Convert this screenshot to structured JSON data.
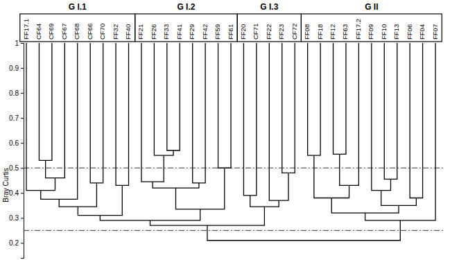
{
  "chart_data": {
    "type": "dendrogram",
    "y_label": "Bray Curtis",
    "ylim": [
      0.14,
      1
    ],
    "yticks": [
      0.2,
      0.3,
      0.4,
      0.5,
      0.6,
      0.7,
      0.8,
      0.9,
      1
    ],
    "reference_lines": [
      0.5,
      0.25
    ],
    "color": "#000000",
    "groups": [
      {
        "label": "G I.1",
        "first": "FF17.1",
        "last": "FF40"
      },
      {
        "label": "G I.2",
        "first": "FF21",
        "last": "FF61"
      },
      {
        "label": "G I.3",
        "first": "FF20",
        "last": "CF72"
      },
      {
        "label": "G II",
        "first": "FF08",
        "last": "FF07"
      }
    ],
    "tree": {
      "height": 0.21,
      "children": [
        {
          "height": 0.27,
          "children": [
            {
              "height": 0.29,
              "children": [
                {
                  "height": 0.31,
                  "children": [
                    {
                      "height": 0.345,
                      "children": [
                        {
                          "height": 0.375,
                          "children": [
                            {
                              "height": 0.41,
                              "children": [
                                {
                                  "label": "FF17.1"
                                },
                                {
                                  "height": 0.46,
                                  "children": [
                                    {
                                      "height": 0.53,
                                      "children": [
                                        {
                                          "label": "CF64"
                                        },
                                        {
                                          "label": "CF69"
                                        }
                                      ]
                                    },
                                    {
                                      "label": "CF67"
                                    }
                                  ]
                                }
                              ]
                            },
                            {
                              "label": "CF68"
                            }
                          ]
                        },
                        {
                          "height": 0.44,
                          "children": [
                            {
                              "label": "CF66"
                            },
                            {
                              "label": "CF70"
                            }
                          ]
                        }
                      ]
                    },
                    {
                      "height": 0.43,
                      "children": [
                        {
                          "label": "FF32"
                        },
                        {
                          "label": "FF40"
                        }
                      ]
                    }
                  ]
                },
                {
                  "height": 0.335,
                  "children": [
                    {
                      "height": 0.42,
                      "children": [
                        {
                          "height": 0.445,
                          "children": [
                            {
                              "label": "FF21"
                            },
                            {
                              "height": 0.55,
                              "children": [
                                {
                                  "label": "FF26"
                                },
                                {
                                  "height": 0.57,
                                  "children": [
                                    {
                                      "label": "FF33"
                                    },
                                    {
                                      "label": "FF41"
                                    }
                                  ]
                                }
                              ]
                            }
                          ]
                        },
                        {
                          "height": 0.44,
                          "children": [
                            {
                              "label": "FF29"
                            },
                            {
                              "label": "FF42"
                            }
                          ]
                        }
                      ]
                    },
                    {
                      "height": 0.5,
                      "children": [
                        {
                          "label": "FF59"
                        },
                        {
                          "label": "FF61"
                        }
                      ]
                    }
                  ]
                }
              ]
            },
            {
              "height": 0.345,
              "children": [
                {
                  "height": 0.39,
                  "children": [
                    {
                      "label": "FF20"
                    },
                    {
                      "label": "CF71"
                    }
                  ]
                },
                {
                  "height": 0.37,
                  "children": [
                    {
                      "label": "FF22"
                    },
                    {
                      "height": 0.48,
                      "children": [
                        {
                          "label": "FF23"
                        },
                        {
                          "label": "CF72"
                        }
                      ]
                    }
                  ]
                }
              ]
            }
          ]
        },
        {
          "height": 0.29,
          "children": [
            {
              "height": 0.32,
              "children": [
                {
                  "height": 0.38,
                  "children": [
                    {
                      "height": 0.55,
                      "children": [
                        {
                          "label": "FF08"
                        },
                        {
                          "label": "FF18"
                        }
                      ]
                    },
                    {
                      "height": 0.43,
                      "children": [
                        {
                          "height": 0.555,
                          "children": [
                            {
                              "label": "FF12"
                            },
                            {
                              "label": "FF63"
                            }
                          ]
                        },
                        {
                          "label": "FF17.2"
                        }
                      ]
                    }
                  ]
                },
                {
                  "height": 0.35,
                  "children": [
                    {
                      "height": 0.41,
                      "children": [
                        {
                          "label": "FF09"
                        },
                        {
                          "height": 0.455,
                          "children": [
                            {
                              "label": "FF10"
                            },
                            {
                              "label": "FF13"
                            }
                          ]
                        }
                      ]
                    },
                    {
                      "height": 0.38,
                      "children": [
                        {
                          "label": "FF06"
                        },
                        {
                          "label": "FF04"
                        }
                      ]
                    }
                  ]
                }
              ]
            },
            {
              "label": "FF07"
            }
          ]
        }
      ]
    }
  }
}
